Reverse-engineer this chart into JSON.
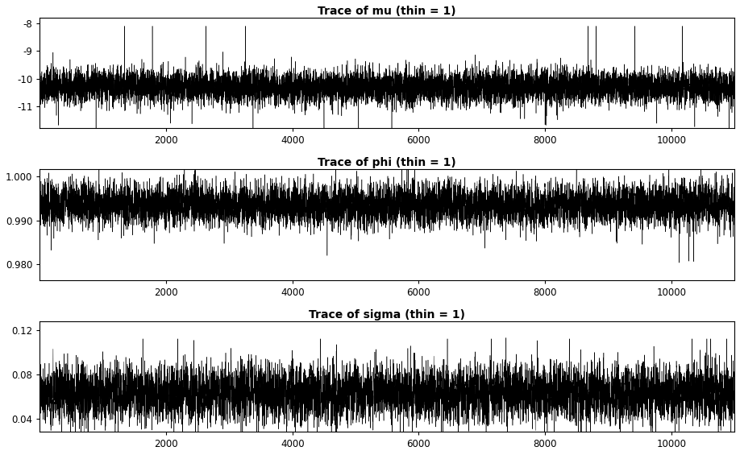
{
  "panels": [
    {
      "title": "Trace of mu (thin = 1)",
      "ylim": [
        -11.8,
        -7.8
      ],
      "yticks": [
        -11,
        -10,
        -9,
        -8
      ],
      "mean": -10.3,
      "std": 0.32,
      "rho": 0.15,
      "spike_prob": 0.002,
      "spike_low": -11.6,
      "spike_high": -8.1
    },
    {
      "title": "Trace of phi (thin = 1)",
      "ylim": [
        0.9765,
        1.0015
      ],
      "yticks": [
        0.98,
        0.99,
        1.0
      ],
      "mean": 0.9935,
      "std": 0.0025,
      "rho": 0.25,
      "spike_prob": 0.003,
      "spike_low": 0.9775,
      "spike_high": 0.9995
    },
    {
      "title": "Trace of sigma (thin = 1)",
      "ylim": [
        0.028,
        0.128
      ],
      "yticks": [
        0.04,
        0.08,
        0.12
      ],
      "mean": 0.063,
      "std": 0.013,
      "rho": 0.35,
      "spike_prob": 0.002,
      "spike_low": 0.033,
      "spike_high": 0.112
    }
  ],
  "n_samples": 11000,
  "xlim": [
    1,
    11000
  ],
  "xticks": [
    2000,
    4000,
    6000,
    8000,
    10000
  ],
  "line_color": "#000000",
  "line_width": 0.35,
  "bg_color": "#ffffff",
  "title_fontsize": 10,
  "tick_fontsize": 8.5
}
